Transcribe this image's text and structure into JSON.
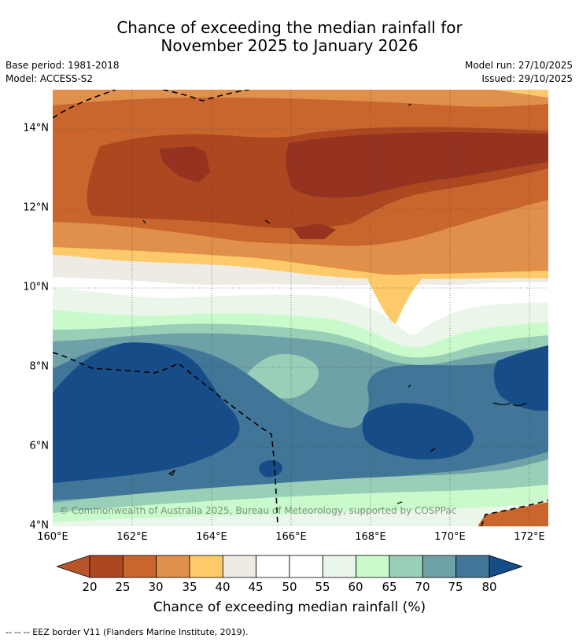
{
  "title_line1": "Chance of exceeding the median rainfall for",
  "title_line2": "November 2025 to January 2026",
  "base_period": "Base period: 1981-2018",
  "model": "Model: ACCESS-S2",
  "model_run": "Model run: 27/10/2025",
  "issued": "Issued: 29/10/2025",
  "copyright": "© Commonwealth of Australia 2025, Bureau of Meteorology, supported by COSPPac",
  "colorbar_title": "Chance of exceeding median rainfall (%)",
  "legend_text": "-- -- -- EEZ border V11 (Flanders Marine Institute, 2019).",
  "chart_data": {
    "type": "map",
    "region": {
      "lon_min": 160,
      "lon_max": 172.5,
      "lat_min": 4,
      "lat_max": 15
    },
    "x_ticks": [
      "160°E",
      "162°E",
      "164°E",
      "166°E",
      "168°E",
      "170°E",
      "172°E"
    ],
    "y_ticks": [
      "4°N",
      "6°N",
      "8°N",
      "10°N",
      "12°N",
      "14°N"
    ],
    "colorbar": {
      "ticks": [
        "20",
        "25",
        "30",
        "35",
        "40",
        "45",
        "50",
        "55",
        "60",
        "65",
        "70",
        "75",
        "80"
      ],
      "colors": [
        "#b9532a",
        "#ad4720",
        "#c9662e",
        "#e0904a",
        "#fcca6a",
        "#eeeae4",
        "#ffffff",
        "#ffffff",
        "#e9f6e9",
        "#c9facb",
        "#99cfb7",
        "#6ea1a8",
        "#417698",
        "#164d88"
      ]
    },
    "zones": [
      {
        "label": "45-50",
        "lat_range": [
          9.6,
          10.4
        ],
        "lon_range": [
          160,
          172.5
        ]
      },
      {
        "label": "35-40",
        "lat_range": [
          10.5,
          14.9
        ],
        "lon_range": [
          160,
          172.5
        ]
      },
      {
        "label": "20-25",
        "lat_range": [
          11.7,
          14.0
        ],
        "lon_range": [
          161,
          172.5
        ]
      },
      {
        "label": "55-65",
        "lat_range": [
          8.7,
          9.6
        ],
        "lon_range": [
          160,
          172.5
        ]
      },
      {
        "label": "70-80",
        "lat_range": [
          5.0,
          8.7
        ],
        "lon_range": [
          160,
          172.5
        ]
      },
      {
        "label": "60-70",
        "lat_range": [
          4.0,
          5.0
        ],
        "lon_range": [
          160,
          172.5
        ]
      }
    ]
  }
}
